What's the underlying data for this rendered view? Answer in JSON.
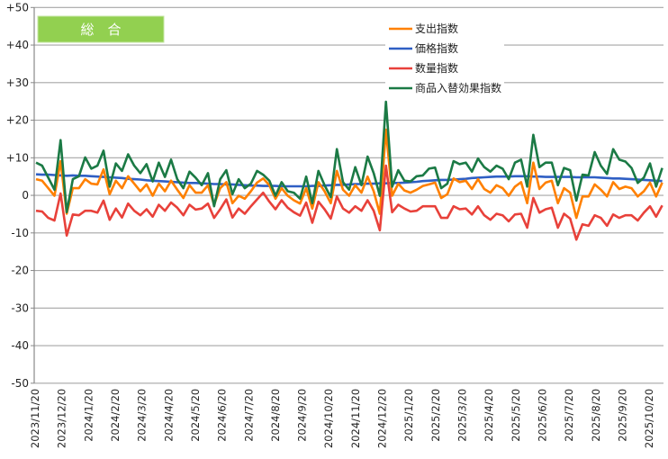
{
  "chart_data": {
    "type": "line",
    "title": "総　合",
    "xlabel": "",
    "ylabel": "",
    "ylim": [
      -50,
      50
    ],
    "y_ticks": [
      "+50",
      "+40",
      "+30",
      "+20",
      "+10",
      "0",
      "-10",
      "-20",
      "-30",
      "-40",
      "-50"
    ],
    "y_tick_values": [
      50,
      40,
      30,
      20,
      10,
      0,
      -10,
      -20,
      -30,
      -40,
      -50
    ],
    "grid": true,
    "legend_position": "top-right",
    "x_frequency": "weekly",
    "x_tick_labels": [
      "2023/11/20",
      "2023/12/20",
      "2024/1/20",
      "2024/2/20",
      "2024/3/20",
      "2024/4/20",
      "2024/5/20",
      "2024/6/20",
      "2024/7/20",
      "2024/8/20",
      "2024/9/20",
      "2024/10/20",
      "2024/11/20",
      "2024/12/20",
      "2025/1/20",
      "2025/2/20",
      "2025/3/20",
      "2025/4/20",
      "2025/5/20",
      "2025/6/20",
      "2025/7/20",
      "2025/8/20",
      "2025/9/20",
      "2025/10/20"
    ],
    "series": [
      {
        "name": "支出指数",
        "color": "#FF8000",
        "values": [
          4.3,
          3.9,
          1.9,
          -0.1,
          9.1,
          -4.9,
          1.9,
          1.9,
          4.3,
          3.1,
          2.9,
          6.9,
          0.3,
          3.9,
          1.9,
          5.1,
          3.1,
          1.1,
          2.9,
          -0.1,
          3.1,
          1.1,
          3.9,
          1.5,
          -0.7,
          2.7,
          0.7,
          0.7,
          2.7,
          -2.5,
          1.9,
          3.5,
          -2.1,
          -0.1,
          -0.9,
          1.1,
          3.4,
          4.5,
          2.7,
          -0.9,
          1.9,
          -0.1,
          -1.3,
          -2.2,
          1.9,
          -3.5,
          3.5,
          1.1,
          -2.1,
          6.5,
          1.5,
          -0.1,
          2.7,
          0.7,
          5.0,
          1.1,
          -4.9,
          17.5,
          -0.1,
          3.1,
          1.3,
          0.7,
          1.5,
          2.5,
          2.9,
          3.4,
          -0.7,
          0.3,
          4.5,
          3.5,
          3.9,
          1.7,
          4.3,
          1.7,
          0.7,
          2.7,
          1.9,
          -0.1,
          2.3,
          3.5,
          -2.1,
          8.7,
          1.7,
          3.4,
          3.9,
          -2.1,
          1.9,
          0.7,
          -6.0,
          -0.3,
          -0.3,
          2.9,
          1.5,
          -0.3,
          3.5,
          1.7,
          2.3,
          1.9,
          -0.3,
          1.1,
          3.4,
          -0.3,
          3.4
        ]
      },
      {
        "name": "価格指数",
        "color": "#2F5FC4",
        "values": [
          5.6,
          5.5,
          5.5,
          5.4,
          5.3,
          5.2,
          5.3,
          5.2,
          5.2,
          5.1,
          5.0,
          4.9,
          4.8,
          4.7,
          4.6,
          4.4,
          4.3,
          4.2,
          4.0,
          3.9,
          3.8,
          3.7,
          3.6,
          3.5,
          3.4,
          3.3,
          3.3,
          3.2,
          3.1,
          3.0,
          3.0,
          2.9,
          2.9,
          2.8,
          2.7,
          2.6,
          2.6,
          2.5,
          2.5,
          2.5,
          2.4,
          2.4,
          2.4,
          2.4,
          2.4,
          2.5,
          2.5,
          2.6,
          2.7,
          2.8,
          2.8,
          2.9,
          3.0,
          3.0,
          3.1,
          3.1,
          3.2,
          3.2,
          3.3,
          3.3,
          3.4,
          3.5,
          3.6,
          3.8,
          3.9,
          4.0,
          4.1,
          4.1,
          4.2,
          4.3,
          4.4,
          4.6,
          4.7,
          4.8,
          4.9,
          5.0,
          5.0,
          5.0,
          5.1,
          5.1,
          5.1,
          5.0,
          5.0,
          4.9,
          4.9,
          4.9,
          4.9,
          4.9,
          4.8,
          4.8,
          4.8,
          4.8,
          4.7,
          4.6,
          4.5,
          4.5,
          4.4,
          4.3,
          4.2,
          4.1,
          4.0,
          3.9,
          3.8
        ]
      },
      {
        "name": "数量指数",
        "color": "#E8413A",
        "values": [
          -4.1,
          -4.3,
          -6.0,
          -6.7,
          0.5,
          -10.7,
          -5.1,
          -5.3,
          -4.1,
          -4.1,
          -4.6,
          -1.4,
          -6.5,
          -3.5,
          -5.9,
          -2.2,
          -4.1,
          -5.3,
          -3.7,
          -5.7,
          -2.5,
          -4.1,
          -1.9,
          -3.3,
          -5.3,
          -2.5,
          -3.8,
          -3.5,
          -2.2,
          -6.0,
          -3.7,
          -1.1,
          -5.9,
          -3.5,
          -4.9,
          -2.9,
          -1.1,
          0.7,
          -1.7,
          -3.7,
          -1.3,
          -3.3,
          -4.5,
          -5.4,
          -1.9,
          -7.3,
          -1.7,
          -3.7,
          -6.2,
          -0.3,
          -3.5,
          -4.6,
          -2.9,
          -4.1,
          -1.3,
          -4.1,
          -9.3,
          7.9,
          -4.5,
          -2.5,
          -3.5,
          -4.3,
          -4.1,
          -2.9,
          -2.9,
          -2.9,
          -6.0,
          -6.0,
          -2.9,
          -3.7,
          -3.5,
          -5.1,
          -2.9,
          -5.3,
          -6.5,
          -4.9,
          -5.3,
          -6.9,
          -5.1,
          -4.9,
          -8.6,
          -0.7,
          -4.6,
          -3.7,
          -3.3,
          -8.6,
          -4.9,
          -6.2,
          -11.8,
          -7.7,
          -8.1,
          -5.3,
          -6.0,
          -8.1,
          -5.1,
          -6.0,
          -5.3,
          -5.3,
          -6.7,
          -4.6,
          -2.9,
          -5.7,
          -2.7
        ]
      },
      {
        "name": "商品入替効果指数",
        "color": "#1B7A45",
        "values": [
          8.7,
          7.9,
          4.7,
          1.5,
          14.7,
          -4.5,
          4.3,
          5.1,
          10.1,
          7.1,
          7.9,
          11.9,
          2.3,
          8.5,
          6.5,
          10.9,
          7.9,
          5.9,
          8.3,
          3.7,
          8.7,
          4.9,
          9.5,
          4.3,
          1.9,
          6.3,
          4.7,
          2.7,
          5.9,
          -2.9,
          4.3,
          6.7,
          0.3,
          4.3,
          1.9,
          3.1,
          6.5,
          5.5,
          3.9,
          -0.1,
          3.5,
          1.1,
          0.7,
          -0.9,
          5.0,
          -2.1,
          6.5,
          2.7,
          -0.5,
          12.3,
          3.5,
          1.5,
          7.5,
          2.7,
          10.3,
          5.9,
          -0.1,
          24.9,
          2.3,
          6.7,
          3.9,
          3.7,
          5.1,
          5.3,
          7.1,
          7.4,
          1.9,
          3.1,
          9.1,
          8.3,
          8.7,
          6.3,
          9.8,
          7.5,
          6.3,
          7.9,
          7.1,
          4.3,
          8.7,
          9.5,
          2.3,
          16.1,
          7.5,
          8.7,
          8.7,
          2.7,
          7.3,
          6.7,
          -1.4,
          5.5,
          5.3,
          11.5,
          7.9,
          5.7,
          12.3,
          9.5,
          9.0,
          7.3,
          3.3,
          4.7,
          8.5,
          2.3,
          7.3
        ]
      }
    ]
  }
}
